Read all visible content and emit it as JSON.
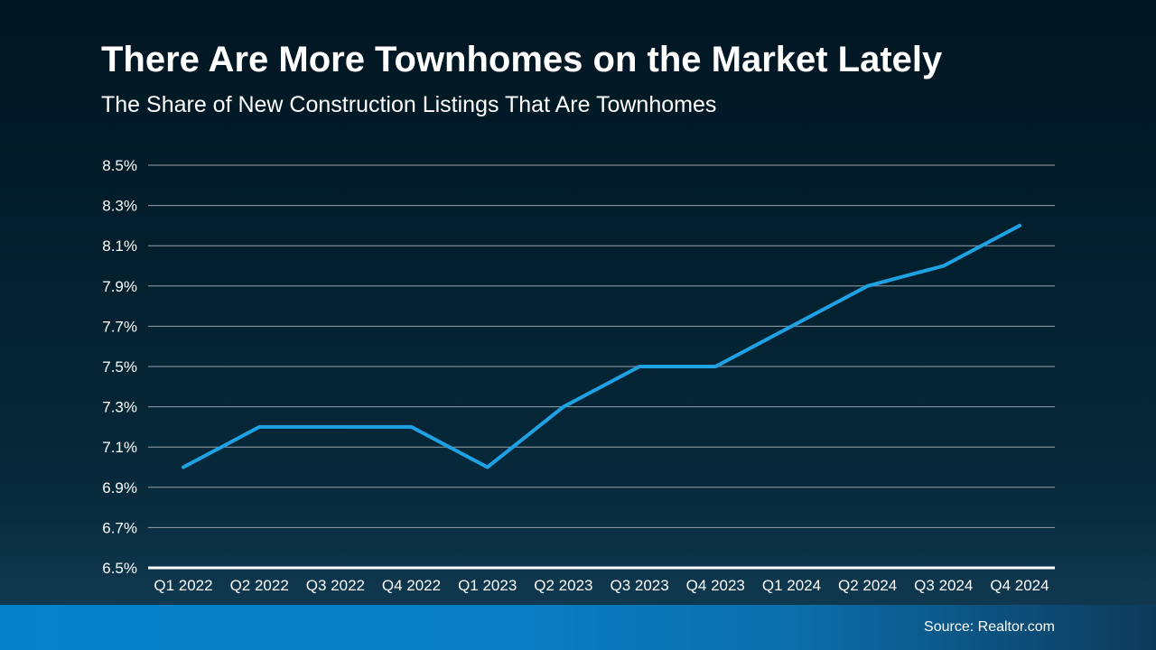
{
  "header": {
    "title": "There Are More Townhomes on the Market Lately",
    "subtitle": "The Share of New Construction Listings That Are Townhomes"
  },
  "chart_data": {
    "type": "line",
    "title": "There Are More Townhomes on the Market Lately",
    "subtitle": "The Share of New Construction Listings That Are Townhomes",
    "categories": [
      "Q1 2022",
      "Q2 2022",
      "Q3 2022",
      "Q4 2022",
      "Q1 2023",
      "Q2 2023",
      "Q3 2023",
      "Q4 2023",
      "Q1 2024",
      "Q2 2024",
      "Q3 2024",
      "Q4 2024"
    ],
    "series": [
      {
        "name": "Townhome share of new construction listings",
        "values": [
          7.0,
          7.2,
          7.2,
          7.2,
          7.0,
          7.3,
          7.5,
          7.5,
          7.7,
          7.9,
          8.0,
          8.2
        ]
      }
    ],
    "xlabel": "",
    "ylabel": "",
    "ylim": [
      6.5,
      8.5
    ],
    "yticks": [
      {
        "value": 8.5,
        "label": "8.5%"
      },
      {
        "value": 8.3,
        "label": "8.3%"
      },
      {
        "value": 8.1,
        "label": "8.1%"
      },
      {
        "value": 7.9,
        "label": "7.9%"
      },
      {
        "value": 7.7,
        "label": "7.7%"
      },
      {
        "value": 7.5,
        "label": "7.5%"
      },
      {
        "value": 7.3,
        "label": "7.3%"
      },
      {
        "value": 7.1,
        "label": "7.1%"
      },
      {
        "value": 6.9,
        "label": "6.9%"
      },
      {
        "value": 6.7,
        "label": "6.7%"
      },
      {
        "value": 6.5,
        "label": "6.5%"
      }
    ],
    "grid": "horizontal",
    "legend": "none",
    "line_color": "#1fa2e4",
    "gridline_color": "#97a2ab",
    "axis_line_color": "#ffffff",
    "label_color": "#ffffff"
  },
  "footer": {
    "source": "Source: Realtor.com",
    "gradient_left": "#0581ca",
    "gradient_right": "#0e3a5a"
  },
  "colors": {
    "background_top": "#021622",
    "background_bottom": "#123e57",
    "text": "#ffffff"
  }
}
